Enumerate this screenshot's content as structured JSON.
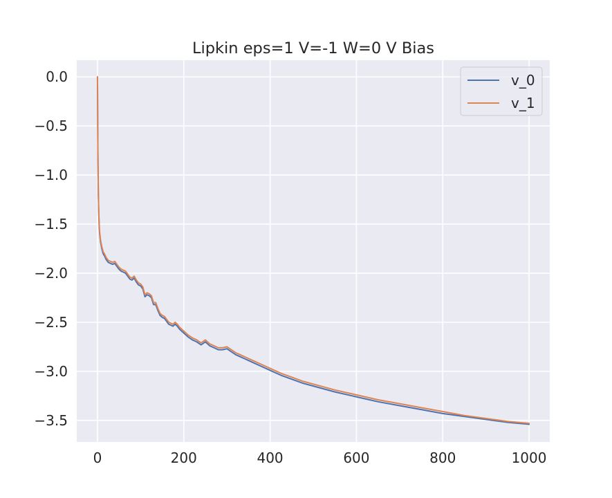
{
  "chart_data": {
    "type": "line",
    "title": "Lipkin eps=1 V=-1 W=0 V Bias",
    "xlabel": "",
    "ylabel": "",
    "xlim": [
      -48,
      1048
    ],
    "ylim": [
      -3.72,
      0.17
    ],
    "xticks": [
      0,
      200,
      400,
      600,
      800,
      1000
    ],
    "xtick_labels": [
      "0",
      "200",
      "400",
      "600",
      "800",
      "1000"
    ],
    "yticks": [
      0.0,
      -0.5,
      -1.0,
      -1.5,
      -2.0,
      -2.5,
      -3.0,
      -3.5
    ],
    "ytick_labels": [
      "0.0",
      "−0.5",
      "−1.0",
      "−1.5",
      "−2.0",
      "−2.5",
      "−3.0",
      "−3.5"
    ],
    "grid": true,
    "legend_position": "top-right",
    "series": [
      {
        "name": "v_0",
        "color": "#4c72b0",
        "x": [
          0,
          1,
          2,
          3,
          4,
          5,
          7,
          10,
          13,
          17,
          20,
          25,
          30,
          35,
          40,
          45,
          50,
          55,
          60,
          65,
          70,
          75,
          80,
          85,
          90,
          95,
          100,
          105,
          110,
          115,
          120,
          125,
          130,
          135,
          140,
          145,
          150,
          155,
          160,
          165,
          170,
          175,
          180,
          185,
          190,
          200,
          210,
          220,
          230,
          240,
          250,
          260,
          270,
          280,
          290,
          300,
          310,
          320,
          330,
          340,
          350,
          360,
          380,
          400,
          425,
          450,
          475,
          500,
          550,
          600,
          650,
          700,
          750,
          800,
          850,
          900,
          950,
          1000
        ],
        "y": [
          0.0,
          -0.8,
          -1.2,
          -1.4,
          -1.52,
          -1.6,
          -1.68,
          -1.75,
          -1.8,
          -1.83,
          -1.86,
          -1.89,
          -1.9,
          -1.91,
          -1.9,
          -1.93,
          -1.96,
          -1.98,
          -1.99,
          -2.0,
          -2.03,
          -2.06,
          -2.07,
          -2.05,
          -2.09,
          -2.12,
          -2.13,
          -2.16,
          -2.24,
          -2.22,
          -2.23,
          -2.25,
          -2.32,
          -2.32,
          -2.38,
          -2.43,
          -2.45,
          -2.46,
          -2.49,
          -2.52,
          -2.53,
          -2.54,
          -2.52,
          -2.54,
          -2.57,
          -2.61,
          -2.65,
          -2.68,
          -2.7,
          -2.73,
          -2.7,
          -2.74,
          -2.76,
          -2.78,
          -2.78,
          -2.77,
          -2.8,
          -2.83,
          -2.85,
          -2.87,
          -2.89,
          -2.91,
          -2.95,
          -2.99,
          -3.04,
          -3.08,
          -3.12,
          -3.15,
          -3.21,
          -3.26,
          -3.31,
          -3.35,
          -3.39,
          -3.43,
          -3.46,
          -3.49,
          -3.52,
          -3.54
        ]
      },
      {
        "name": "v_1",
        "color": "#dd8452",
        "x": [
          0,
          1,
          2,
          3,
          4,
          5,
          7,
          10,
          13,
          17,
          20,
          25,
          30,
          35,
          40,
          45,
          50,
          55,
          60,
          65,
          70,
          75,
          80,
          85,
          90,
          95,
          100,
          105,
          110,
          115,
          120,
          125,
          130,
          135,
          140,
          145,
          150,
          155,
          160,
          165,
          170,
          175,
          180,
          185,
          190,
          200,
          210,
          220,
          230,
          240,
          250,
          260,
          270,
          280,
          290,
          300,
          310,
          320,
          330,
          340,
          350,
          360,
          380,
          400,
          425,
          450,
          475,
          500,
          550,
          600,
          650,
          700,
          750,
          800,
          850,
          900,
          950,
          1000
        ],
        "y": [
          0.0,
          -0.78,
          -1.18,
          -1.38,
          -1.5,
          -1.58,
          -1.66,
          -1.73,
          -1.78,
          -1.81,
          -1.84,
          -1.87,
          -1.88,
          -1.89,
          -1.88,
          -1.91,
          -1.94,
          -1.96,
          -1.97,
          -1.98,
          -2.01,
          -2.04,
          -2.05,
          -2.03,
          -2.07,
          -2.1,
          -2.11,
          -2.14,
          -2.22,
          -2.2,
          -2.21,
          -2.23,
          -2.3,
          -2.3,
          -2.36,
          -2.41,
          -2.43,
          -2.44,
          -2.47,
          -2.5,
          -2.51,
          -2.52,
          -2.5,
          -2.52,
          -2.55,
          -2.59,
          -2.63,
          -2.66,
          -2.68,
          -2.71,
          -2.68,
          -2.72,
          -2.74,
          -2.76,
          -2.76,
          -2.75,
          -2.78,
          -2.81,
          -2.83,
          -2.85,
          -2.87,
          -2.89,
          -2.93,
          -2.97,
          -3.02,
          -3.06,
          -3.1,
          -3.13,
          -3.19,
          -3.24,
          -3.29,
          -3.33,
          -3.37,
          -3.41,
          -3.45,
          -3.48,
          -3.51,
          -3.53
        ]
      }
    ]
  }
}
